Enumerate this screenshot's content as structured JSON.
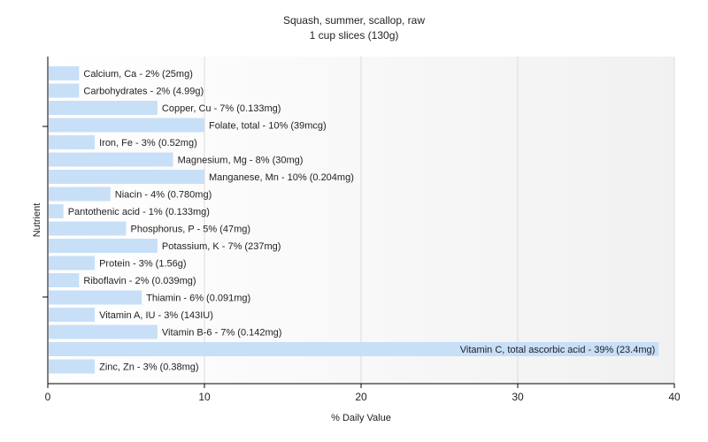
{
  "chart_data": {
    "type": "bar",
    "orientation": "horizontal",
    "title": "Squash, summer, scallop, raw",
    "subtitle": "1 cup slices (130g)",
    "xlabel": "% Daily Value",
    "ylabel": "Nutrient",
    "xlim": [
      0,
      40
    ],
    "xticks": [
      0,
      10,
      20,
      30,
      40
    ],
    "grid": true,
    "bar_color": "#c8dff8",
    "categories": [
      "Calcium, Ca",
      "Carbohydrates",
      "Copper, Cu",
      "Folate, total",
      "Iron, Fe",
      "Magnesium, Mg",
      "Manganese, Mn",
      "Niacin",
      "Pantothenic acid",
      "Phosphorus, P",
      "Potassium, K",
      "Protein",
      "Riboflavin",
      "Thiamin",
      "Vitamin A, IU",
      "Vitamin B-6",
      "Vitamin C, total ascorbic acid",
      "Zinc, Zn"
    ],
    "values": [
      2,
      2,
      7,
      10,
      3,
      8,
      10,
      4,
      1,
      5,
      7,
      3,
      2,
      6,
      3,
      7,
      39,
      3
    ],
    "labels": [
      "Calcium, Ca - 2% (25mg)",
      "Carbohydrates - 2% (4.99g)",
      "Copper, Cu - 7% (0.133mg)",
      "Folate, total - 10% (39mcg)",
      "Iron, Fe - 3% (0.52mg)",
      "Magnesium, Mg - 8% (30mg)",
      "Manganese, Mn - 10% (0.204mg)",
      "Niacin - 4% (0.780mg)",
      "Pantothenic acid - 1% (0.133mg)",
      "Phosphorus, P - 5% (47mg)",
      "Potassium, K - 7% (237mg)",
      "Protein - 3% (1.56g)",
      "Riboflavin - 2% (0.039mg)",
      "Thiamin - 6% (0.091mg)",
      "Vitamin A, IU - 3% (143IU)",
      "Vitamin B-6 - 7% (0.142mg)",
      "Vitamin C, total ascorbic acid - 39% (23.4mg)",
      "Zinc, Zn - 3% (0.38mg)"
    ]
  }
}
